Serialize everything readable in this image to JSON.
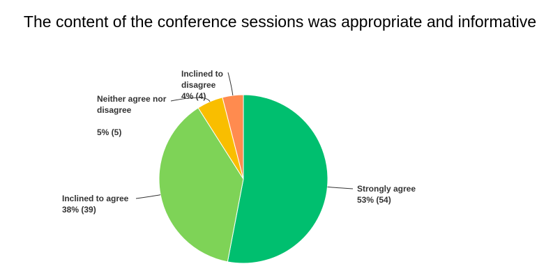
{
  "chart_data": {
    "type": "pie",
    "title": "The content of the conference sessions was appropriate and informative",
    "categories": [
      "Strongly agree",
      "Inclined to agree",
      "Neither agree nor disagree",
      "Inclined to disagree"
    ],
    "values": [
      53,
      38,
      5,
      4
    ],
    "value_labels": [
      "53% (54)",
      "38% (39)",
      "5% (5)",
      "4% (4)"
    ],
    "colors": [
      "#00bf6f",
      "#7ed357",
      "#f9be00",
      "#ff8b4f"
    ]
  }
}
